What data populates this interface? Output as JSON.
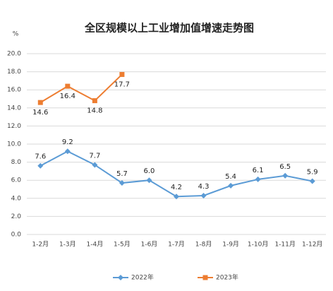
{
  "chart_data": {
    "type": "line",
    "title": "全区规模以上工业增加值增速走势图",
    "y_unit": "%",
    "categories": [
      "1-2月",
      "1-3月",
      "1-4月",
      "1-5月",
      "1-6月",
      "1-7月",
      "1-8月",
      "1-9月",
      "1-10月",
      "1-11月",
      "1-12月"
    ],
    "series": [
      {
        "name": "2022年",
        "color": "#5b9bd5",
        "marker": "diamond",
        "values": [
          7.6,
          9.2,
          7.7,
          5.7,
          6.0,
          4.2,
          4.3,
          5.4,
          6.1,
          6.5,
          5.9
        ],
        "value_labels": [
          "7.6",
          "9.2",
          "7.7",
          "5.7",
          "6.0",
          "4.2",
          "4.3",
          "5.4",
          "6.1",
          "6.5",
          "5.9"
        ]
      },
      {
        "name": "2023年",
        "color": "#ed7d31",
        "marker": "square",
        "values": [
          14.6,
          16.4,
          14.8,
          17.7,
          null,
          null,
          null,
          null,
          null,
          null,
          null
        ],
        "value_labels": [
          "14.6",
          "16.4",
          "14.8",
          "17.7",
          null,
          null,
          null,
          null,
          null,
          null,
          null
        ]
      }
    ],
    "ylim": [
      0,
      20
    ],
    "yticks": [
      {
        "value": 0,
        "label": "0.0"
      },
      {
        "value": 2,
        "label": "2.0"
      },
      {
        "value": 4,
        "label": "4.0"
      },
      {
        "value": 6,
        "label": "6.0"
      },
      {
        "value": 8,
        "label": "8.0"
      },
      {
        "value": 10,
        "label": "10.0"
      },
      {
        "value": 12,
        "label": "12.0"
      },
      {
        "value": 14,
        "label": "14.0"
      },
      {
        "value": 16,
        "label": "16.0"
      },
      {
        "value": 18,
        "label": "18.0"
      },
      {
        "value": 20,
        "label": "20.0"
      }
    ],
    "grid": true,
    "legend": "bottom"
  }
}
